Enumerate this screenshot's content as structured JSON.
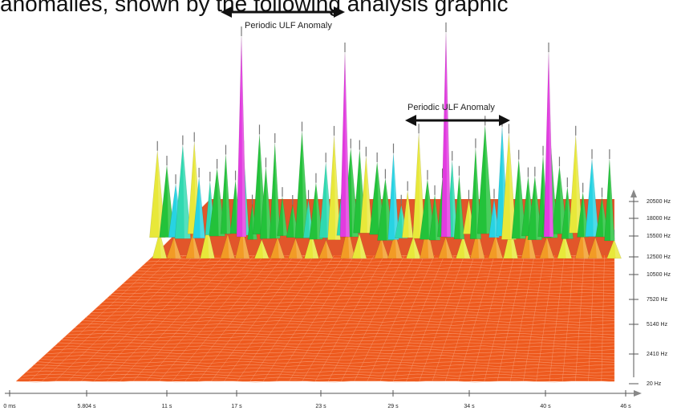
{
  "caption": "anomalies, shown by the following analysis graphic",
  "chart_data": {
    "type": "area",
    "subtype": "3d-waterfall-spectrogram",
    "title": "",
    "xlabel": "",
    "ylabel": "",
    "x_ticks": [
      "0 ms",
      "5.804 s",
      "11 s",
      "17 s",
      "23 s",
      "29 s",
      "34 s",
      "40 s",
      "46 s"
    ],
    "y_ticks": [
      "20 Hz",
      "2410 Hz",
      "5140 Hz",
      "7520 Hz",
      "10500 Hz",
      "12500 Hz",
      "15500 Hz",
      "18000 Hz",
      "20500 Hz"
    ],
    "xlim": [
      0,
      46
    ],
    "ylim": [
      20,
      20500
    ],
    "annotations": [
      {
        "text": "Periodic ULF Anomaly",
        "x_range": [
          17,
          25
        ]
      },
      {
        "text": "Periodic ULF Anomaly",
        "x_range": [
          31,
          38
        ]
      }
    ],
    "anomaly_peaks_s": [
      17,
      25,
      31.5,
      38.5
    ],
    "colors": {
      "surface": "#ee5a1e",
      "grid": "#f7a47e",
      "anomaly": "#e23be0",
      "green": "#23c23a",
      "cyan": "#27d3e3",
      "yellow": "#e8e83a",
      "orange": "#f29b25"
    }
  }
}
